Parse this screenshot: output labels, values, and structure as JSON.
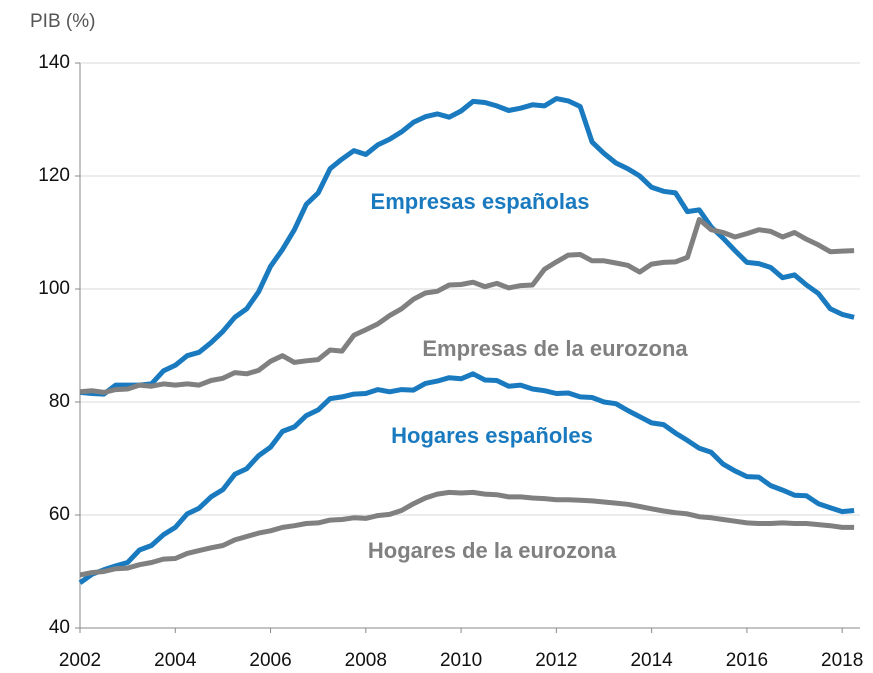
{
  "chart_data": {
    "type": "line",
    "y_label": "PIB (%)",
    "x": [
      2002,
      2002.25,
      2002.5,
      2002.75,
      2003,
      2003.25,
      2003.5,
      2003.75,
      2004,
      2004.25,
      2004.5,
      2004.75,
      2005,
      2005.25,
      2005.5,
      2005.75,
      2006,
      2006.25,
      2006.5,
      2006.75,
      2007,
      2007.25,
      2007.5,
      2007.75,
      2008,
      2008.25,
      2008.5,
      2008.75,
      2009,
      2009.25,
      2009.5,
      2009.75,
      2010,
      2010.25,
      2010.5,
      2010.75,
      2011,
      2011.25,
      2011.5,
      2011.75,
      2012,
      2012.25,
      2012.5,
      2012.75,
      2013,
      2013.25,
      2013.5,
      2013.75,
      2014,
      2014.25,
      2014.5,
      2014.75,
      2015,
      2015.25,
      2015.5,
      2015.75,
      2016,
      2016.25,
      2016.5,
      2016.75,
      2017,
      2017.25,
      2017.5,
      2017.75,
      2018,
      2018.25
    ],
    "series": [
      {
        "name": "Empresas españolas",
        "color": "#1a7abf",
        "values": [
          81.7,
          81.5,
          81.4,
          83.0,
          83.0,
          83.0,
          83.2,
          85.5,
          86.5,
          88.2,
          88.8,
          90.5,
          92.5,
          95.0,
          96.5,
          99.5,
          104,
          107,
          110.5,
          115,
          117,
          121.3,
          123,
          124.5,
          123.8,
          125.5,
          126.5,
          127.8,
          129.5,
          130.5,
          131,
          130.4,
          131.5,
          133.2,
          133,
          132.4,
          131.6,
          132,
          132.6,
          132.4,
          133.7,
          133.3,
          132.3,
          126,
          124,
          122.3,
          121.3,
          120,
          118,
          117.3,
          117,
          113.7,
          114,
          111,
          109,
          106.8,
          104.7,
          104.5,
          103.8,
          102,
          102.5,
          100.7,
          99.2,
          96.5,
          95.5,
          95.0
        ]
      },
      {
        "name": "Empresas de la eurozona",
        "color": "#808080",
        "values": [
          81.8,
          82,
          81.7,
          82.2,
          82.3,
          83,
          82.8,
          83.2,
          83.0,
          83.2,
          83,
          83.8,
          84.2,
          85.2,
          85,
          85.6,
          87.2,
          88.2,
          87,
          87.3,
          87.5,
          89.2,
          89,
          91.8,
          92.8,
          93.8,
          95.3,
          96.5,
          98.2,
          99.3,
          99.6,
          100.7,
          100.8,
          101.2,
          100.4,
          101,
          100.2,
          100.6,
          100.7,
          103.5,
          104.8,
          106,
          106.1,
          105,
          105,
          104.6,
          104.2,
          103,
          104.4,
          104.7,
          104.8,
          105.6,
          112.3,
          110.5,
          110,
          109.2,
          109.8,
          110.5,
          110.2,
          109.2,
          110,
          108.8,
          107.8,
          106.6,
          106.7,
          106.8
        ]
      },
      {
        "name": "Hogares españoles",
        "color": "#1a7abf",
        "values": [
          48,
          49.5,
          50.3,
          51,
          51.6,
          53.8,
          54.6,
          56.5,
          57.8,
          60.2,
          61.2,
          63.2,
          64.5,
          67.2,
          68.2,
          70.5,
          72,
          74.8,
          75.6,
          77.6,
          78.6,
          80.6,
          80.9,
          81.4,
          81.5,
          82.2,
          81.8,
          82.2,
          82.1,
          83.3,
          83.7,
          84.3,
          84.1,
          85,
          83.9,
          83.8,
          82.8,
          83,
          82.3,
          82,
          81.5,
          81.6,
          80.9,
          80.8,
          80,
          79.7,
          78.5,
          77.4,
          76.3,
          76,
          74.5,
          73.2,
          71.8,
          71.1,
          69,
          67.8,
          66.8,
          66.7,
          65.2,
          64.4,
          63.5,
          63.4,
          62,
          61.3,
          60.6,
          60.8
        ]
      },
      {
        "name": "Hogares de la eurozona",
        "color": "#808080",
        "values": [
          49.4,
          49.8,
          50,
          50.5,
          50.6,
          51.2,
          51.6,
          52.2,
          52.3,
          53.2,
          53.7,
          54.2,
          54.6,
          55.6,
          56.2,
          56.8,
          57.2,
          57.8,
          58.1,
          58.5,
          58.6,
          59.1,
          59.2,
          59.5,
          59.4,
          59.9,
          60.1,
          60.8,
          62,
          63,
          63.7,
          64,
          63.9,
          64,
          63.7,
          63.6,
          63.2,
          63.2,
          63,
          62.9,
          62.7,
          62.7,
          62.6,
          62.5,
          62.3,
          62.1,
          61.9,
          61.5,
          61.1,
          60.7,
          60.4,
          60.2,
          59.7,
          59.5,
          59.2,
          58.9,
          58.6,
          58.5,
          58.5,
          58.6,
          58.5,
          58.5,
          58.3,
          58.1,
          57.8,
          57.8
        ]
      }
    ],
    "xlim": [
      2002,
      2018.5
    ],
    "xticks": [
      2002,
      2004,
      2006,
      2008,
      2010,
      2012,
      2014,
      2016,
      2018
    ],
    "ylim": [
      40,
      140
    ],
    "yticks": [
      40,
      60,
      80,
      100,
      120,
      140
    ],
    "grid": true
  }
}
